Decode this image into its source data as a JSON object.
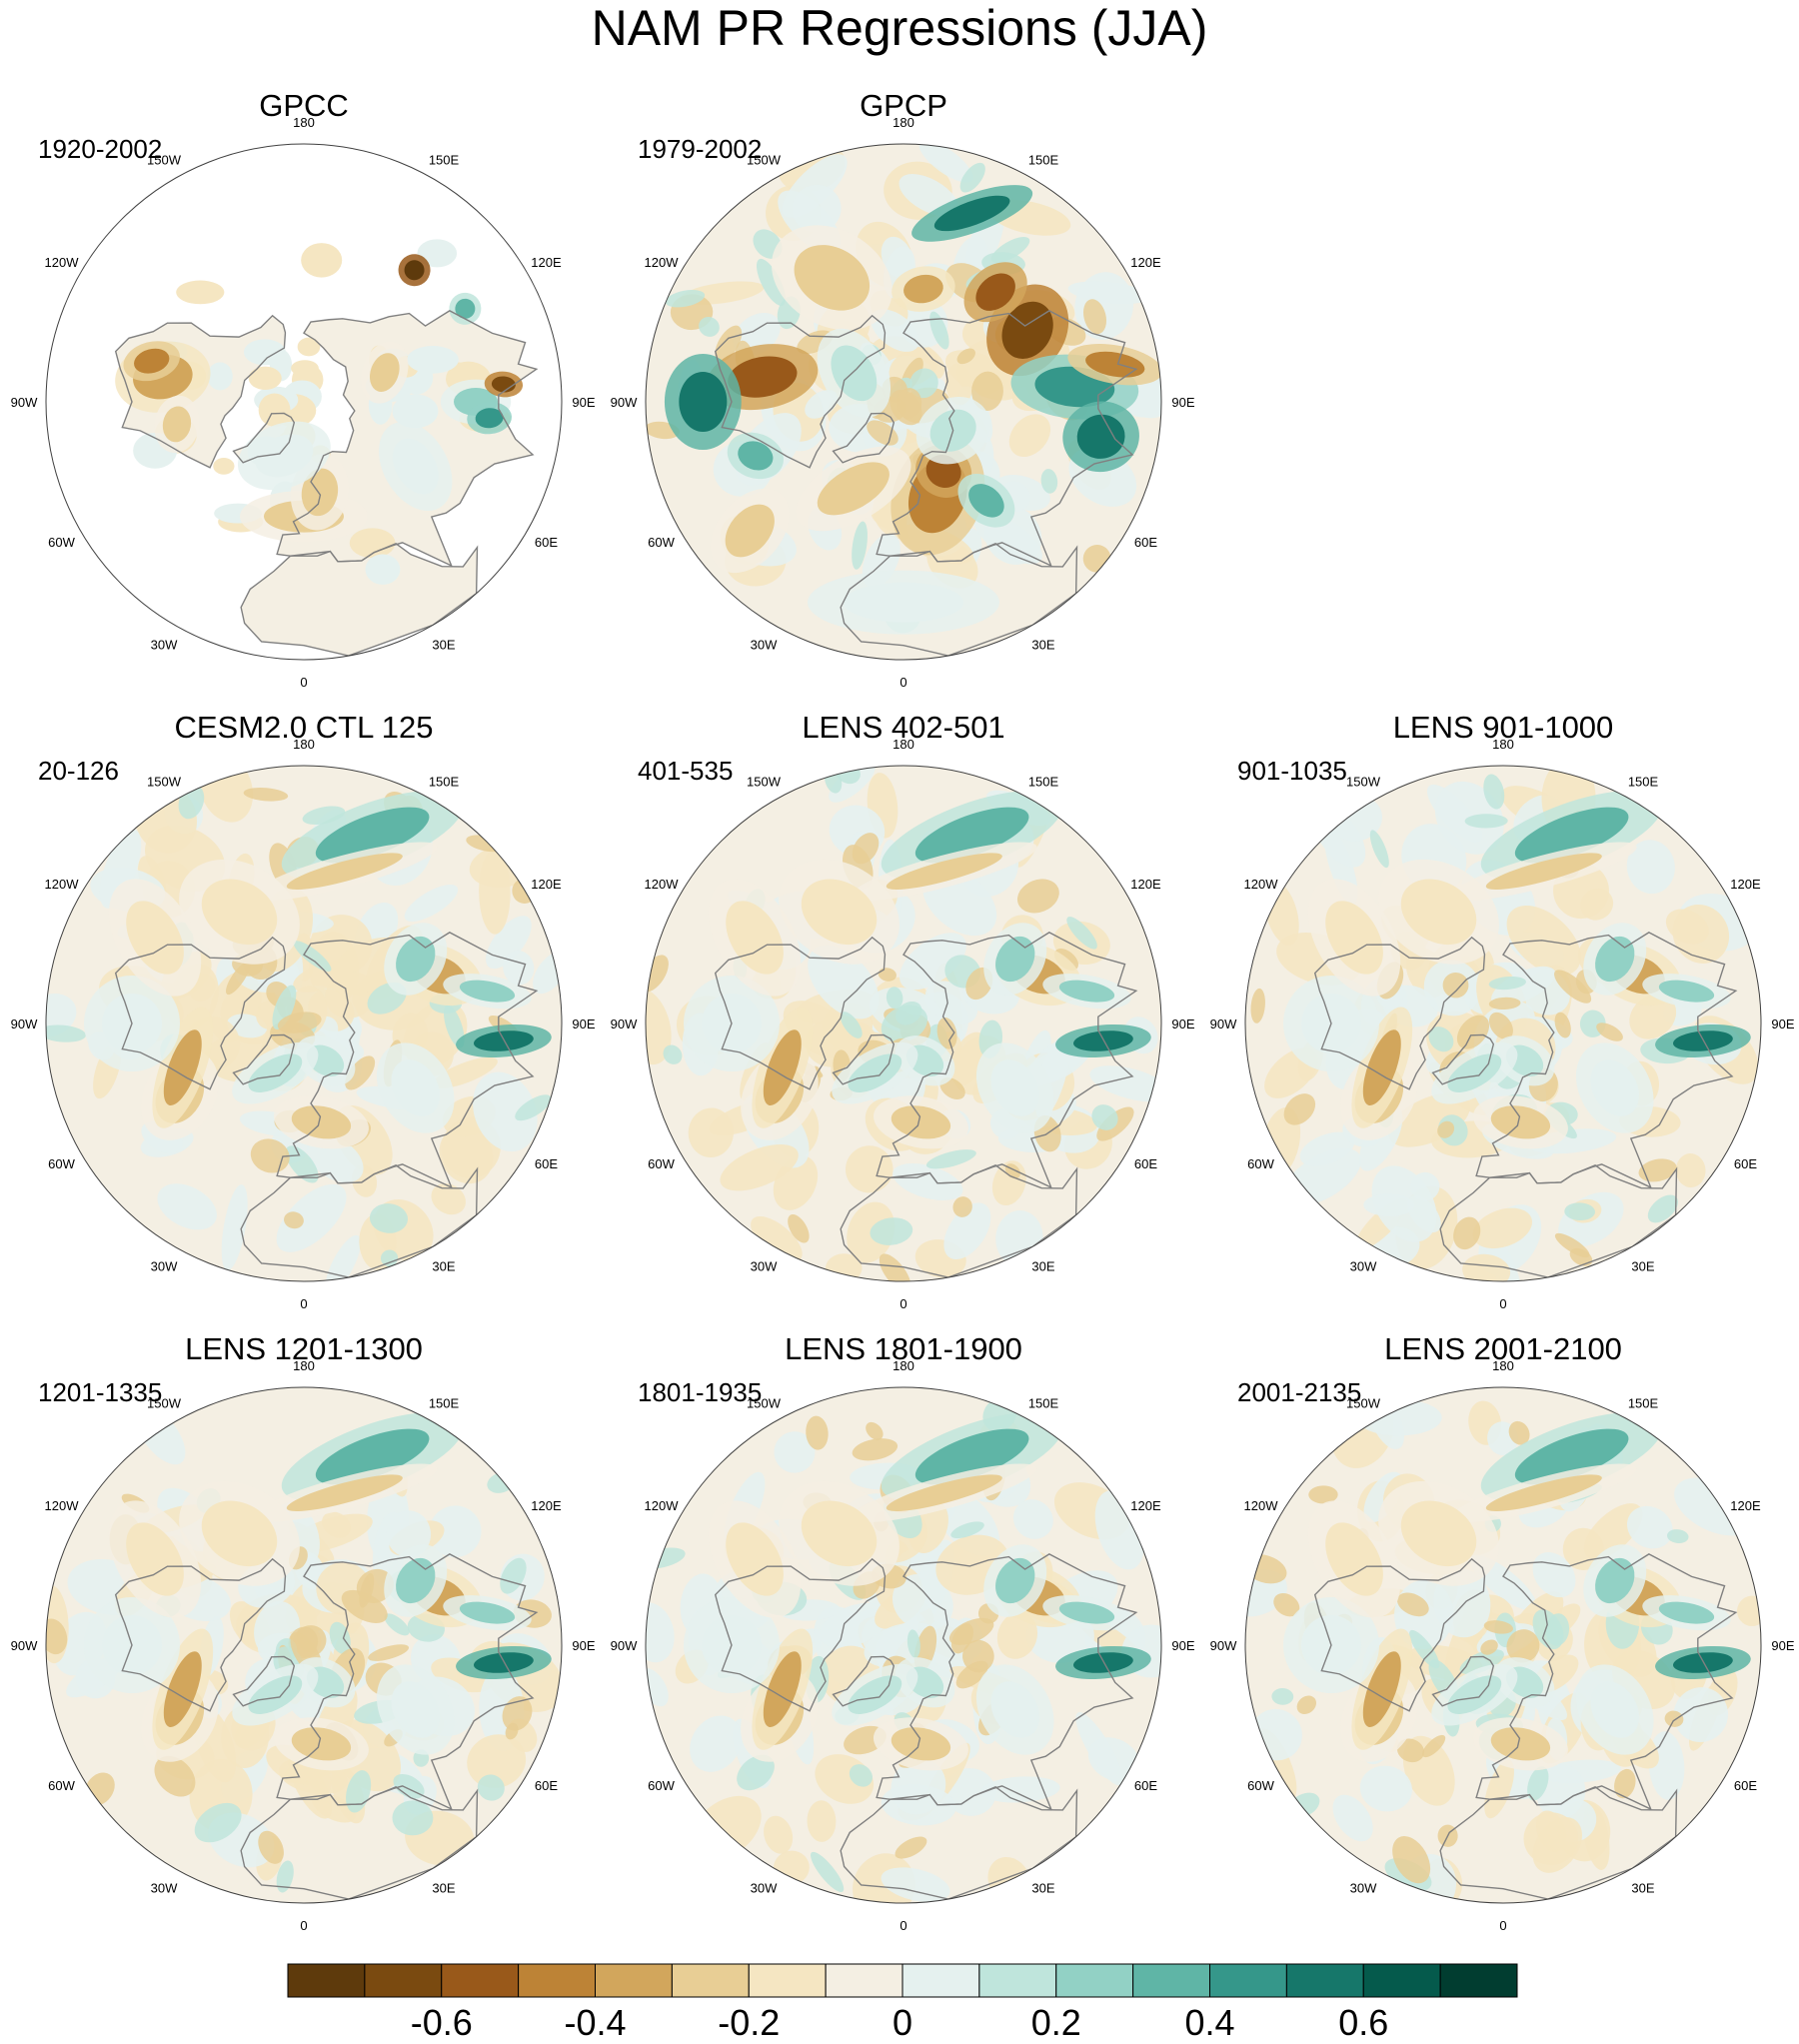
{
  "title": "NAM PR Regressions (JJA)",
  "panels": [
    {
      "id": "gpcc",
      "title": "GPCC",
      "years": "1920-2002",
      "pattern": "gpcc"
    },
    {
      "id": "gpcp",
      "title": "GPCP",
      "years": "1979-2002",
      "pattern": "gpcp"
    },
    {
      "id": "ctl",
      "title": "CESM2.0 CTL 125",
      "years": "20-126",
      "pattern": "model"
    },
    {
      "id": "l402",
      "title": "LENS 402-501",
      "years": "401-535",
      "pattern": "model"
    },
    {
      "id": "l901",
      "title": "LENS 901-1000",
      "years": "901-1035",
      "pattern": "model"
    },
    {
      "id": "l1201",
      "title": "LENS 1201-1300",
      "years": "1201-1335",
      "pattern": "model"
    },
    {
      "id": "l1801",
      "title": "LENS 1801-1900",
      "years": "1801-1935",
      "pattern": "model"
    },
    {
      "id": "l2001",
      "title": "LENS 2001-2100",
      "years": "2001-2135",
      "pattern": "model"
    }
  ],
  "longitude_labels": [
    "180",
    "150E",
    "120E",
    "90E",
    "60E",
    "30E",
    "0",
    "30W",
    "60W",
    "90W",
    "120W",
    "150W"
  ],
  "colorbar": {
    "colors": [
      "#5e3a0c",
      "#7a4a10",
      "#99591a",
      "#bd8336",
      "#d2a65c",
      "#e8ce95",
      "#f5e6c2",
      "#f4efe3",
      "#e5f1ef",
      "#bfe5dc",
      "#92d1c5",
      "#5fb5a6",
      "#35978a",
      "#16776a",
      "#055a4c",
      "#013d30"
    ],
    "tick_labels": [
      "-0.6",
      "-0.4",
      "-0.2",
      "0",
      "0.2",
      "0.4",
      "0.6"
    ]
  },
  "colors": {
    "land_outline": "#808080",
    "frame": "#404040",
    "missing": "#ffffff"
  }
}
